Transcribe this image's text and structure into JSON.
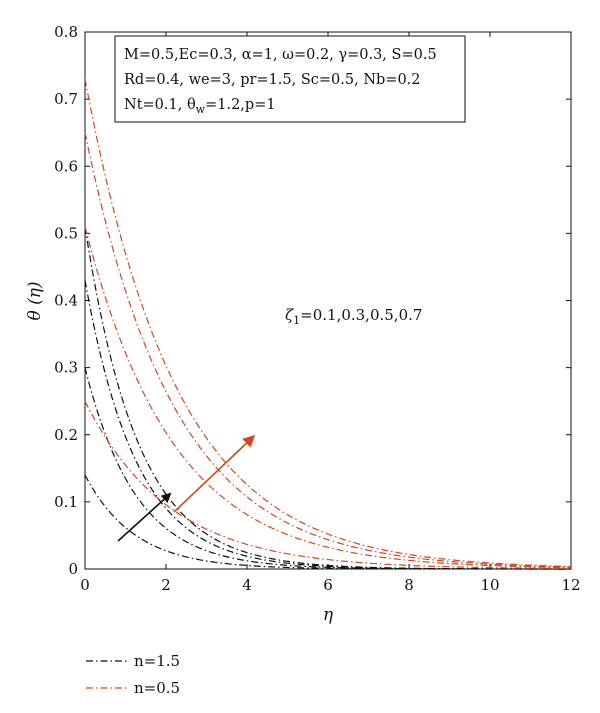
{
  "chart_data": {
    "type": "line",
    "xlabel": "η",
    "ylabel": "θ (η)",
    "xlim": [
      0,
      12
    ],
    "ylim": [
      0,
      0.8
    ],
    "xticks": [
      "0",
      "2",
      "4",
      "6",
      "8",
      "10",
      "12"
    ],
    "yticks": [
      "0",
      "0.1",
      "0.2",
      "0.3",
      "0.4",
      "0.5",
      "0.6",
      "0.7",
      "0.8"
    ],
    "grid": false,
    "legend_position": "bottom-left outside",
    "info_box": [
      "M=0.5,Ec=0.3, α=1, ω=0.2, γ=0.3, S=0.5",
      "Rd=0.4, we=3, pr=1.5, Sc=0.5, Nb=0.2",
      "Nt=0.1, θw=1.2,p=1"
    ],
    "info_box_parts": {
      "line3_prefix": "Nt=0.1, θ",
      "line3_sub": "w",
      "line3_suffix": "=1.2,p=1"
    },
    "annotation": {
      "symbol": "ζ",
      "sub": "1",
      "values": "=0.1,0.3,0.5,0.7"
    },
    "series": [
      {
        "name": "n=1.5",
        "color": "#111111",
        "values_at_zero": [
          0.14,
          0.3,
          0.43,
          0.51
        ],
        "decay": [
          0.82,
          0.8,
          0.78,
          0.76
        ]
      },
      {
        "name": "n=0.5",
        "color": "#d2471e",
        "values_at_zero": [
          0.25,
          0.51,
          0.65,
          0.73
        ],
        "decay": [
          0.48,
          0.46,
          0.45,
          0.44
        ]
      }
    ],
    "legend": [
      {
        "label": "n=1.5",
        "color": "#111111"
      },
      {
        "label": "n=0.5",
        "color": "#d2471e"
      }
    ]
  }
}
